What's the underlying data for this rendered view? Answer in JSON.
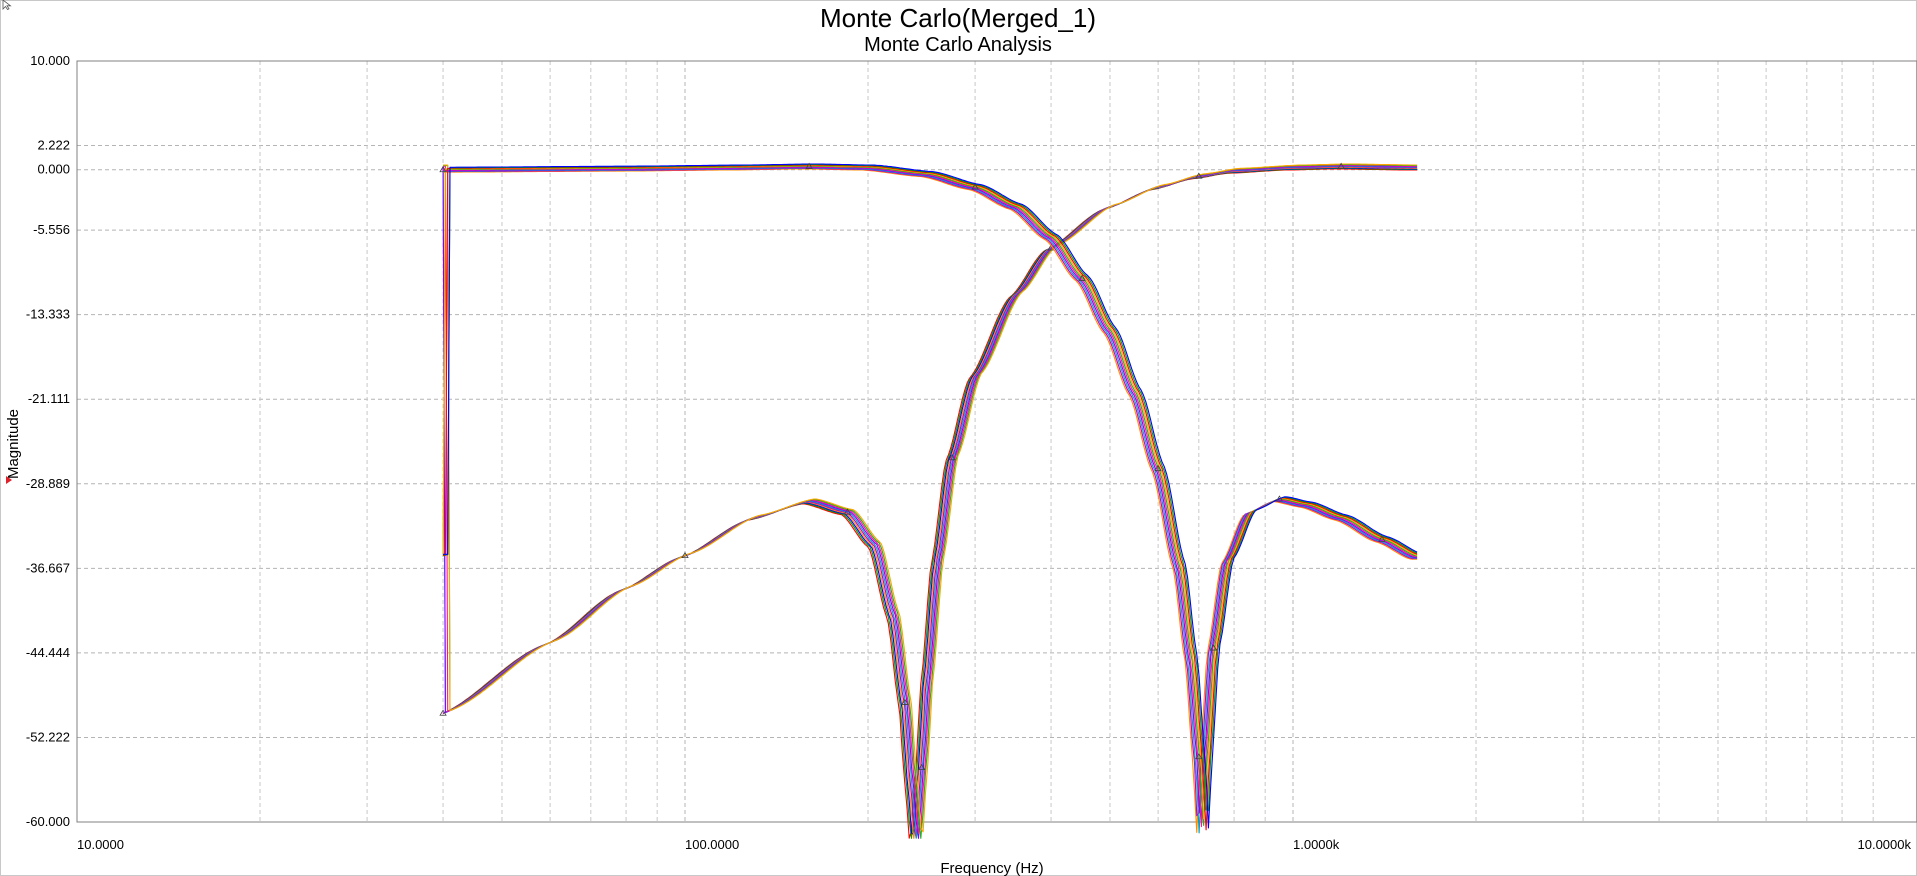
{
  "chart_data": {
    "type": "line",
    "title": "Monte Carlo(Merged_1)",
    "subtitle": "Monte Carlo Analysis",
    "xlabel": "Frequency (Hz)",
    "ylabel": "Magnitude",
    "xscale": "log",
    "xlim": [
      10,
      10000
    ],
    "ylim": [
      -60,
      10
    ],
    "grid": true,
    "legend": "none",
    "y_ticks": [
      "10.000",
      "2.222",
      "0.000",
      "-5.556",
      "-13.333",
      "-21.111",
      "-28.889",
      "-36.667",
      "-44.444",
      "-52.222",
      "-60.000"
    ],
    "y_tick_values": [
      10,
      2.222,
      0,
      -5.556,
      -13.333,
      -21.111,
      -28.889,
      -36.667,
      -44.444,
      -52.222,
      -60
    ],
    "x_ticks": [
      "10.0000",
      "100.0000",
      "1.0000k",
      "10.0000k"
    ],
    "x_tick_values": [
      10,
      100,
      1000,
      10000
    ],
    "series_colors": [
      "#ff0000",
      "#00a000",
      "#0000ff",
      "#ff8c00",
      "#c000c0",
      "#00a0c0",
      "#8000ff",
      "#ff1493",
      "#20b020",
      "#ffa500"
    ],
    "series": [
      {
        "x": [
          40,
          60,
          80,
          100,
          130,
          160,
          185,
          205,
          220,
          230,
          235,
          240,
          245,
          250,
          260,
          275,
          300,
          350,
          400,
          500,
          600,
          700,
          800,
          1000,
          1200,
          1600
        ],
        "y": [
          -50.0,
          -43.5,
          -38.5,
          -35.5,
          -32.0,
          -30.5,
          -31.5,
          -34.5,
          -41.0,
          -49.0,
          -56.0,
          -62.0,
          -55.0,
          -47.0,
          -36.0,
          -26.5,
          -19.0,
          -11.5,
          -7.2,
          -3.4,
          -1.6,
          -0.6,
          -0.1,
          0.2,
          0.3,
          0.2
        ]
      },
      {
        "x": [
          40,
          80,
          120,
          160,
          200,
          250,
          300,
          350,
          400,
          450,
          500,
          550,
          600,
          650,
          680,
          700,
          710,
          720,
          740,
          780,
          850,
          950,
          1050,
          1200,
          1400,
          1600
        ],
        "y": [
          0.0,
          0.1,
          0.2,
          0.3,
          0.2,
          -0.4,
          -1.6,
          -3.4,
          -6.2,
          -10.0,
          -14.8,
          -20.5,
          -27.5,
          -36.5,
          -45.0,
          -54.0,
          -61.0,
          -54.0,
          -44.0,
          -36.0,
          -31.5,
          -30.3,
          -30.8,
          -32.0,
          -34.0,
          -35.6
        ]
      }
    ],
    "monte_carlo_runs": 10
  }
}
